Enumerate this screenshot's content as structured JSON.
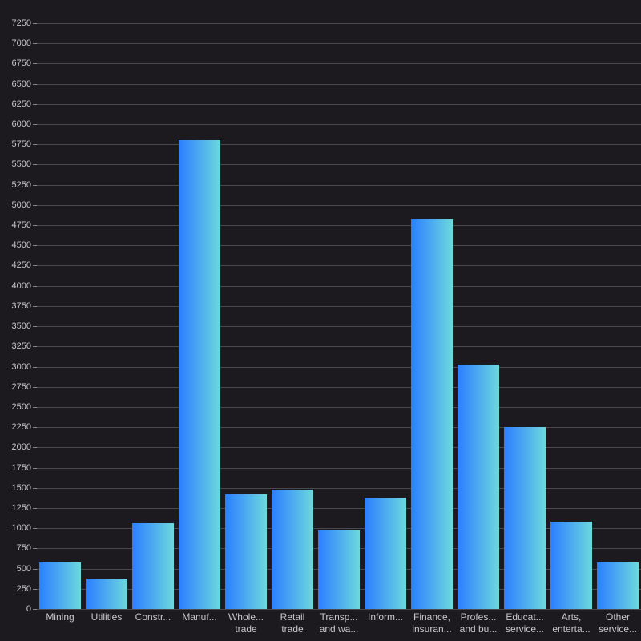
{
  "chart_data": {
    "type": "bar",
    "title": "",
    "xlabel": "",
    "ylabel": "",
    "ylim": [
      0,
      7250
    ],
    "ytick_step": 250,
    "grid": true,
    "legend": null,
    "categories": [
      "Mining",
      "Utilities",
      "Construction",
      "Manufacturing",
      "Wholesale trade",
      "Retail trade",
      "Transportation and warehousing",
      "Information",
      "Finance, insurance",
      "Professional and business services",
      "Educational services",
      "Arts, entertainment",
      "Other services"
    ],
    "category_labels": [
      "Mining",
      "Utilities",
      "Constr...",
      "Manuf...",
      "Whole...\ntrade",
      "Retail\ntrade",
      "Transp...\nand wa...",
      "Inform...",
      "Finance,\ninsuran...",
      "Profes...\nand bu...",
      "Educat...\nservice...",
      "Arts,\nenterta...",
      "Other\nservice..."
    ],
    "values": [
      572,
      377,
      1064,
      5806,
      1416,
      1481,
      972,
      1379,
      4828,
      3029,
      2249,
      1078,
      578
    ],
    "colors": {
      "background": "#1c1a1e",
      "gridline": "#4a484d",
      "bar_gradient_start": "#2b7fff",
      "bar_gradient_end": "#6cd9dc",
      "text": "#c9c7cb"
    }
  }
}
